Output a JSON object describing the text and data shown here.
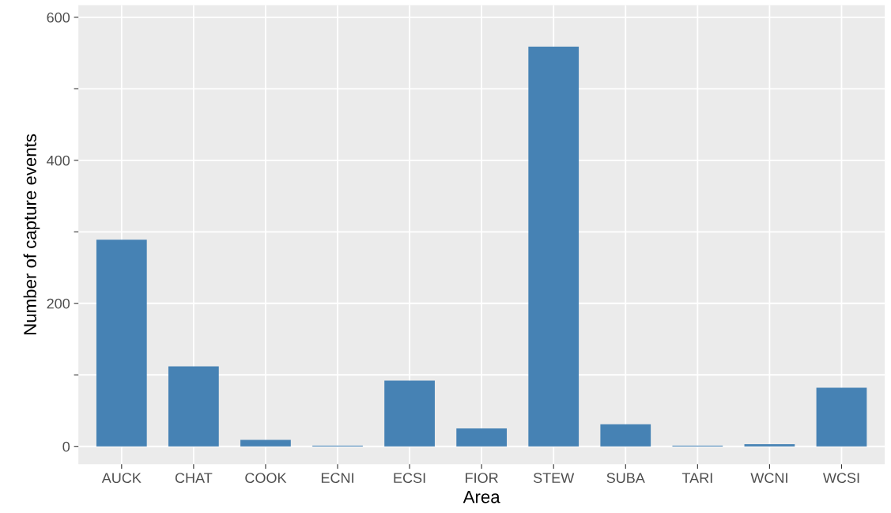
{
  "chart_data": {
    "type": "bar",
    "xlabel": "Area",
    "ylabel": "Number of capture events",
    "categories": [
      "AUCK",
      "CHAT",
      "COOK",
      "ECNI",
      "ECSI",
      "FIOR",
      "STEW",
      "SUBA",
      "TARI",
      "WCNI",
      "WCSI"
    ],
    "values": [
      289,
      112,
      9,
      1,
      92,
      25,
      559,
      31,
      1,
      3,
      82
    ],
    "color": "#4682b4",
    "ylim": [
      -25,
      617
    ],
    "yticks": [
      0,
      {
        "value": 100,
        "label": null
      },
      200,
      {
        "value": 300,
        "label": null
      },
      400,
      {
        "value": 500,
        "label": null
      },
      600
    ],
    "grid": true
  }
}
